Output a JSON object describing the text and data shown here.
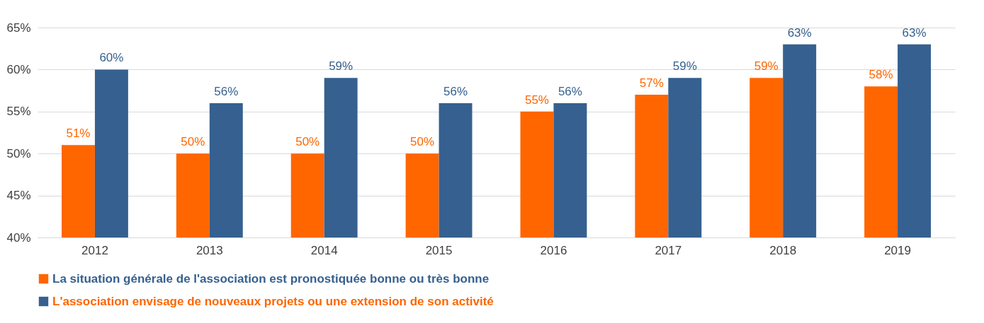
{
  "chart_data": {
    "type": "bar",
    "categories": [
      "2012",
      "2013",
      "2014",
      "2015",
      "2016",
      "2017",
      "2018",
      "2019"
    ],
    "series": [
      {
        "name": "La situation générale de l'association est pronostiquée bonne ou très bonne",
        "color": "#ff6600",
        "values": [
          51,
          50,
          50,
          50,
          55,
          57,
          59,
          58
        ]
      },
      {
        "name": "L'association envisage de nouveaux projets ou une extension de son activité",
        "color": "#36608f",
        "values": [
          60,
          56,
          59,
          56,
          56,
          59,
          63,
          63
        ]
      }
    ],
    "ylim": [
      40,
      65
    ],
    "yticks": [
      {
        "value": 40,
        "label": "40%"
      },
      {
        "value": 45,
        "label": "45%"
      },
      {
        "value": 50,
        "label": "50%"
      },
      {
        "value": 55,
        "label": "55%"
      },
      {
        "value": 60,
        "label": "60%"
      },
      {
        "value": 65,
        "label": "65%"
      }
    ],
    "grid": "y",
    "legend": "bottom",
    "value_labels": [
      [
        "51%",
        "50%",
        "50%",
        "50%",
        "55%",
        "57%",
        "59%",
        "58%"
      ],
      [
        "60%",
        "56%",
        "59%",
        "56%",
        "56%",
        "59%",
        "63%",
        "63%"
      ]
    ]
  }
}
